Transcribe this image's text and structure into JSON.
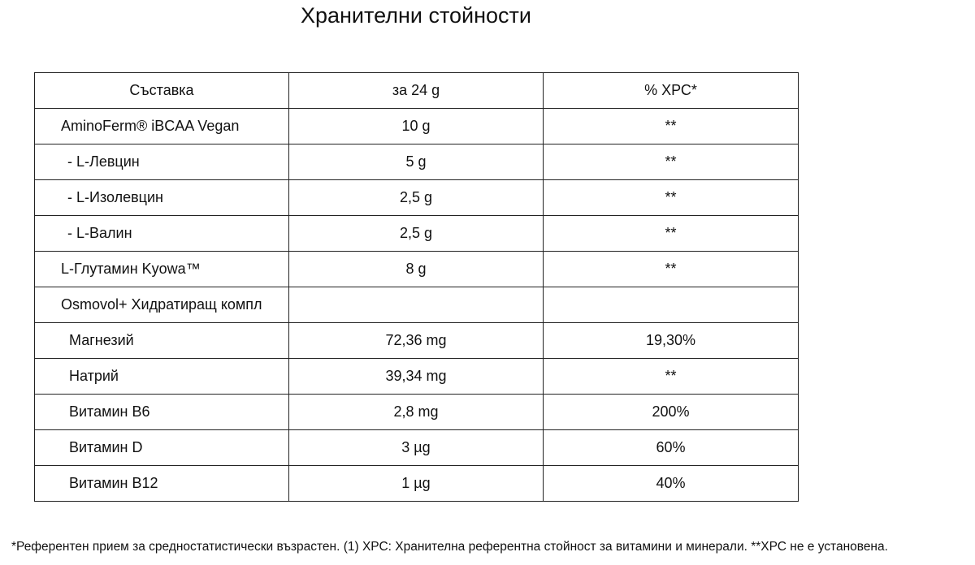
{
  "title": "Хранителни стойности",
  "table": {
    "header": [
      "Съставка",
      "за 24 g",
      "% ХРС*"
    ],
    "rows": [
      [
        "AminoFerm® iBCAA Vegan",
        "10 g",
        "**"
      ],
      [
        "- L-Левцин",
        "5 g",
        "**"
      ],
      [
        "- L-Изолевцин",
        "2,5 g",
        "**"
      ],
      [
        "- L-Валин",
        "2,5 g",
        "**"
      ],
      [
        "L-Глутамин Kyowa™",
        "8 g",
        "**"
      ],
      [
        "Osmovol+ Хидратиращ компл",
        null,
        null
      ],
      [
        "Магнезий",
        "72,36 mg",
        "19,30%"
      ],
      [
        "Натрий",
        "39,34 mg",
        "**"
      ],
      [
        "Витамин B6",
        "2,8 mg",
        "200%"
      ],
      [
        "Витамин D",
        "3 µg",
        "60%"
      ],
      [
        "Витамин B12",
        "1 µg",
        "40%"
      ]
    ]
  },
  "footnote": "*Референтен прием за средностатистически възрастен. (1) ХРС: Хранителна референтна стойност за витамини и минерали. **ХРС не е установена."
}
